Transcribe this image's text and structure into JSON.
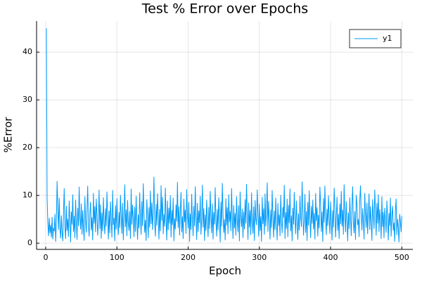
{
  "chart_data": {
    "type": "line",
    "title": "Test % Error over Epochs",
    "x_label": "Epoch",
    "y_label": "%Error",
    "xlim": [
      -12.8,
      515.5
    ],
    "ylim": [
      -1.3,
      46.5
    ],
    "xticks": [
      0,
      100,
      200,
      300,
      400,
      500
    ],
    "yticks": [
      0,
      10,
      20,
      30,
      40
    ],
    "grid": true,
    "legend": "top-right",
    "x": [
      1,
      2,
      3,
      4,
      5,
      6,
      7,
      8,
      9,
      10,
      11,
      12,
      13,
      14,
      15,
      16,
      17,
      18,
      19,
      20,
      21,
      22,
      23,
      24,
      25,
      26,
      27,
      28,
      29,
      30,
      31,
      32,
      33,
      34,
      35,
      36,
      37,
      38,
      39,
      40,
      41,
      42,
      43,
      44,
      45,
      46,
      47,
      48,
      49,
      50,
      51,
      52,
      53,
      54,
      55,
      56,
      57,
      58,
      59,
      60,
      61,
      62,
      63,
      64,
      65,
      66,
      67,
      68,
      69,
      70,
      71,
      72,
      73,
      74,
      75,
      76,
      77,
      78,
      79,
      80,
      81,
      82,
      83,
      84,
      85,
      86,
      87,
      88,
      89,
      90,
      91,
      92,
      93,
      94,
      95,
      96,
      97,
      98,
      99,
      100,
      101,
      102,
      103,
      104,
      105,
      106,
      107,
      108,
      109,
      110,
      111,
      112,
      113,
      114,
      115,
      116,
      117,
      118,
      119,
      120,
      121,
      122,
      123,
      124,
      125,
      126,
      127,
      128,
      129,
      130,
      131,
      132,
      133,
      134,
      135,
      136,
      137,
      138,
      139,
      140,
      141,
      142,
      143,
      144,
      145,
      146,
      147,
      148,
      149,
      150,
      151,
      152,
      153,
      154,
      155,
      156,
      157,
      158,
      159,
      160,
      161,
      162,
      163,
      164,
      165,
      166,
      167,
      168,
      169,
      170,
      171,
      172,
      173,
      174,
      175,
      176,
      177,
      178,
      179,
      180,
      181,
      182,
      183,
      184,
      185,
      186,
      187,
      188,
      189,
      190,
      191,
      192,
      193,
      194,
      195,
      196,
      197,
      198,
      199,
      200,
      201,
      202,
      203,
      204,
      205,
      206,
      207,
      208,
      209,
      210,
      211,
      212,
      213,
      214,
      215,
      216,
      217,
      218,
      219,
      220,
      221,
      222,
      223,
      224,
      225,
      226,
      227,
      228,
      229,
      230,
      231,
      232,
      233,
      234,
      235,
      236,
      237,
      238,
      239,
      240,
      241,
      242,
      243,
      244,
      245,
      246,
      247,
      248,
      249,
      250,
      251,
      252,
      253,
      254,
      255,
      256,
      257,
      258,
      259,
      260,
      261,
      262,
      263,
      264,
      265,
      266,
      267,
      268,
      269,
      270,
      271,
      272,
      273,
      274,
      275,
      276,
      277,
      278,
      279,
      280,
      281,
      282,
      283,
      284,
      285,
      286,
      287,
      288,
      289,
      290,
      291,
      292,
      293,
      294,
      295,
      296,
      297,
      298,
      299,
      300,
      301,
      302,
      303,
      304,
      305,
      306,
      307,
      308,
      309,
      310,
      311,
      312,
      313,
      314,
      315,
      316,
      317,
      318,
      319,
      320,
      321,
      322,
      323,
      324,
      325,
      326,
      327,
      328,
      329,
      330,
      331,
      332,
      333,
      334,
      335,
      336,
      337,
      338,
      339,
      340,
      341,
      342,
      343,
      344,
      345,
      346,
      347,
      348,
      349,
      350,
      351,
      352,
      353,
      354,
      355,
      356,
      357,
      358,
      359,
      360,
      361,
      362,
      363,
      364,
      365,
      366,
      367,
      368,
      369,
      370,
      371,
      372,
      373,
      374,
      375,
      376,
      377,
      378,
      379,
      380,
      381,
      382,
      383,
      384,
      385,
      386,
      387,
      388,
      389,
      390,
      391,
      392,
      393,
      394,
      395,
      396,
      397,
      398,
      399,
      400,
      401,
      402,
      403,
      404,
      405,
      406,
      407,
      408,
      409,
      410,
      411,
      412,
      413,
      414,
      415,
      416,
      417,
      418,
      419,
      420,
      421,
      422,
      423,
      424,
      425,
      426,
      427,
      428,
      429,
      430,
      431,
      432,
      433,
      434,
      435,
      436,
      437,
      438,
      439,
      440,
      441,
      442,
      443,
      444,
      445,
      446,
      447,
      448,
      449,
      450,
      451,
      452,
      453,
      454,
      455,
      456,
      457,
      458,
      459,
      460,
      461,
      462,
      463,
      464,
      465,
      466,
      467,
      468,
      469,
      470,
      471,
      472,
      473,
      474,
      475,
      476,
      477,
      478,
      479,
      480,
      481,
      482,
      483,
      484,
      485,
      486,
      487,
      488,
      489,
      490,
      491,
      492,
      493,
      494,
      495,
      496,
      497,
      498,
      499,
      500
    ],
    "series": [
      {
        "name": "y1",
        "color": "#009af9",
        "values": [
          45,
          9.5,
          4.2,
          1.5,
          5.3,
          2.1,
          3.8,
          1.2,
          5.5,
          0.8,
          3.2,
          2.5,
          6.1,
          0.3,
          4.4,
          13,
          7.2,
          2.8,
          9.5,
          3.1,
          1,
          5.8,
          2.2,
          0.4,
          6.3,
          11.5,
          3.4,
          0.9,
          7.8,
          2.6,
          5.1,
          1.3,
          8.9,
          4.7,
          0.2,
          6.6,
          3.9,
          10.2,
          2.4,
          5.7,
          1.1,
          9.1,
          4.3,
          0.7,
          7.4,
          3.6,
          11.8,
          5.2,
          2.9,
          8.3,
          1.8,
          6.9,
          3.3,
          0.5,
          9.8,
          4.9,
          2.2,
          7.1,
          12,
          3.7,
          1.4,
          6.2,
          8.6,
          2.7,
          5.4,
          0.6,
          10.5,
          4.1,
          7.7,
          2.3,
          9.3,
          5.9,
          1.6,
          4.6,
          11.2,
          3,
          8.1,
          0.9,
          6.4,
          2.5,
          9.6,
          4.4,
          1.9,
          7.3,
          3.5,
          10.8,
          5.6,
          0.8,
          6.8,
          2.1,
          8.7,
          4.8,
          1.2,
          11.1,
          3.8,
          5.3,
          0.4,
          7.9,
          2.9,
          9.4,
          4.5,
          1.7,
          6.5,
          3.2,
          10.1,
          5.5,
          2,
          8.4,
          0.6,
          5.8,
          12.3,
          3.4,
          7,
          1.5,
          9,
          4.2,
          2.6,
          6.7,
          0.9,
          11.4,
          3.9,
          8,
          5.1,
          1.3,
          7.6,
          2.4,
          9.9,
          4.6,
          0.7,
          6,
          3.1,
          10.6,
          5.3,
          1.8,
          8.8,
          3.6,
          12.5,
          6.3,
          2.2,
          4.9,
          0.5,
          9.2,
          5.7,
          1.1,
          7.5,
          3.3,
          11,
          4,
          8.5,
          2.8,
          6.6,
          13.9,
          4.3,
          1.4,
          8.2,
          3.7,
          10.4,
          5.9,
          0.8,
          7.2,
          2.5,
          12.1,
          4.7,
          9.7,
          1.9,
          6.1,
          3.5,
          11.6,
          5,
          0.6,
          8.9,
          2.7,
          7.4,
          4.1,
          10,
          1.2,
          6.9,
          3.8,
          9.5,
          0.4,
          5.2,
          2.9,
          8.1,
          4.5,
          12.8,
          3.2,
          7.7,
          1.6,
          6.4,
          10.7,
          2.3,
          5.6,
          0.9,
          9.3,
          4.4,
          7,
          2,
          11.3,
          5.8,
          3.1,
          8.6,
          0.3,
          6.2,
          2.8,
          10.3,
          4.9,
          1.5,
          7.8,
          3.6,
          11.9,
          5.4,
          0.7,
          8.4,
          2.4,
          6.8,
          4.2,
          9.9,
          1.8,
          5.1,
          12.2,
          3.3,
          7.3,
          0.5,
          6,
          2.6,
          9.1,
          4.6,
          1.3,
          7.6,
          3,
          10.9,
          5.7,
          2.1,
          8.3,
          0.8,
          6.5,
          3.9,
          11.7,
          4.8,
          1.4,
          7.1,
          2.7,
          9.6,
          5.3,
          0.2,
          8.7,
          3.5,
          12.6,
          6.1,
          2.2,
          5,
          0.6,
          9.4,
          3.7,
          7.5,
          1.9,
          10.2,
          4.4,
          6.7,
          2.5,
          11.5,
          5.2,
          0.9,
          8,
          3.1,
          6.3,
          1.6,
          9.8,
          4.7,
          2.3,
          7.9,
          0.4,
          10.8,
          5.5,
          3.4,
          7.2,
          1.1,
          6.6,
          2.9,
          9.2,
          4.1,
          12.4,
          5.9,
          0.7,
          8.5,
          3.3,
          6.9,
          1.7,
          10.6,
          4.5,
          2,
          7.7,
          0.5,
          9,
          5.1,
          3.8,
          11.2,
          6.4,
          1.4,
          8.2,
          2.6,
          5.6,
          0.3,
          9.7,
          4,
          7.3,
          1.8,
          10.4,
          3.5,
          6.1,
          12.7,
          2.4,
          8.8,
          4.9,
          0.8,
          7,
          3.2,
          11.1,
          5.4,
          1.2,
          6.8,
          2.8,
          9.5,
          4.3,
          0.6,
          8.4,
          3.6,
          6,
          1.5,
          10.1,
          4.7,
          2.1,
          7.6,
          5.3,
          12.2,
          0.9,
          6.5,
          3,
          9.3,
          1.3,
          8,
          4.2,
          11.4,
          2.5,
          5.8,
          0.4,
          7.4,
          3.9,
          10.7,
          5,
          1.9,
          8.9,
          4.4,
          0.7,
          6.2,
          2.7,
          9.9,
          5.6,
          3.4,
          12.9,
          7.1,
          1.6,
          4.8,
          10.3,
          2.2,
          6.7,
          0.5,
          8.6,
          3.7,
          11,
          5.2,
          1.1,
          7.8,
          4.1,
          9.1,
          2.9,
          6.3,
          0.8,
          10.5,
          4.6,
          7.5,
          1.4,
          5.9,
          3.1,
          11.8,
          8.2,
          2.4,
          6.6,
          0.3,
          9.4,
          4.3,
          12,
          5.5,
          1.7,
          7.2,
          3.6,
          10,
          5.1,
          2,
          8.7,
          4.9,
          0.6,
          6.9,
          3.3,
          11.6,
          7.6,
          1.2,
          5.4,
          9.7,
          2.6,
          6.1,
          0.9,
          8.3,
          4,
          10.9,
          3.5,
          7,
          1.8,
          12.3,
          5.7,
          2.3,
          8.8,
          4.5,
          0.4,
          6.4,
          3,
          9.6,
          5.3,
          1.5,
          7.9,
          11.9,
          4.2,
          2.1,
          6.7,
          0.7,
          10.1,
          8.1,
          3.8,
          5,
          1.3,
          9,
          12.1,
          6.2,
          2.7,
          7.3,
          4.6,
          0.8,
          10.5,
          5.9,
          3.2,
          8.5,
          1.9,
          6,
          10.4,
          2.8,
          7.7,
          4.4,
          0.5,
          9.2,
          5.6,
          3,
          11.2,
          6.8,
          1.6,
          8.4,
          4.1,
          10.2,
          2.4,
          7.1,
          5.2,
          0.9,
          9.8,
          3.4,
          6.5,
          1.1,
          7.4,
          4.8,
          2.2,
          8.9,
          5.5,
          0.6,
          6.3,
          3.6,
          9.5,
          1.4,
          5.8,
          7.8,
          2.6,
          4.3,
          0.3,
          6.9,
          9.3,
          1.7,
          5.1,
          3.3,
          0.2,
          6.1,
          4.5,
          2.3,
          5.7
        ]
      }
    ]
  }
}
